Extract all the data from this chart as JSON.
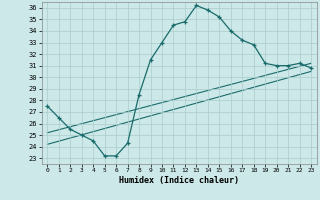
{
  "xlabel": "Humidex (Indice chaleur)",
  "bg_color": "#cce8e8",
  "line_color": "#1a6b6b",
  "grid_color": "#aacccc",
  "xlim": [
    -0.5,
    23.5
  ],
  "ylim": [
    22.5,
    36.5
  ],
  "xticks": [
    0,
    1,
    2,
    3,
    4,
    5,
    6,
    7,
    8,
    9,
    10,
    11,
    12,
    13,
    14,
    15,
    16,
    17,
    18,
    19,
    20,
    21,
    22,
    23
  ],
  "yticks": [
    23,
    24,
    25,
    26,
    27,
    28,
    29,
    30,
    31,
    32,
    33,
    34,
    35,
    36
  ],
  "series1_x": [
    0,
    1,
    2,
    3,
    4,
    5,
    6,
    7,
    8,
    9,
    10,
    11,
    12,
    13,
    14,
    15,
    16,
    17,
    18,
    19,
    20,
    21,
    22,
    23
  ],
  "series1_y": [
    27.5,
    26.5,
    25.5,
    25.0,
    24.5,
    23.2,
    23.2,
    24.3,
    28.5,
    31.5,
    33.0,
    34.5,
    34.8,
    36.2,
    35.8,
    35.2,
    34.0,
    33.2,
    32.8,
    31.2,
    31.0,
    31.0,
    31.2,
    30.8
  ],
  "series2_x": [
    0,
    23
  ],
  "series2_y": [
    25.2,
    31.2
  ],
  "series3_x": [
    0,
    23
  ],
  "series3_y": [
    24.2,
    30.5
  ]
}
